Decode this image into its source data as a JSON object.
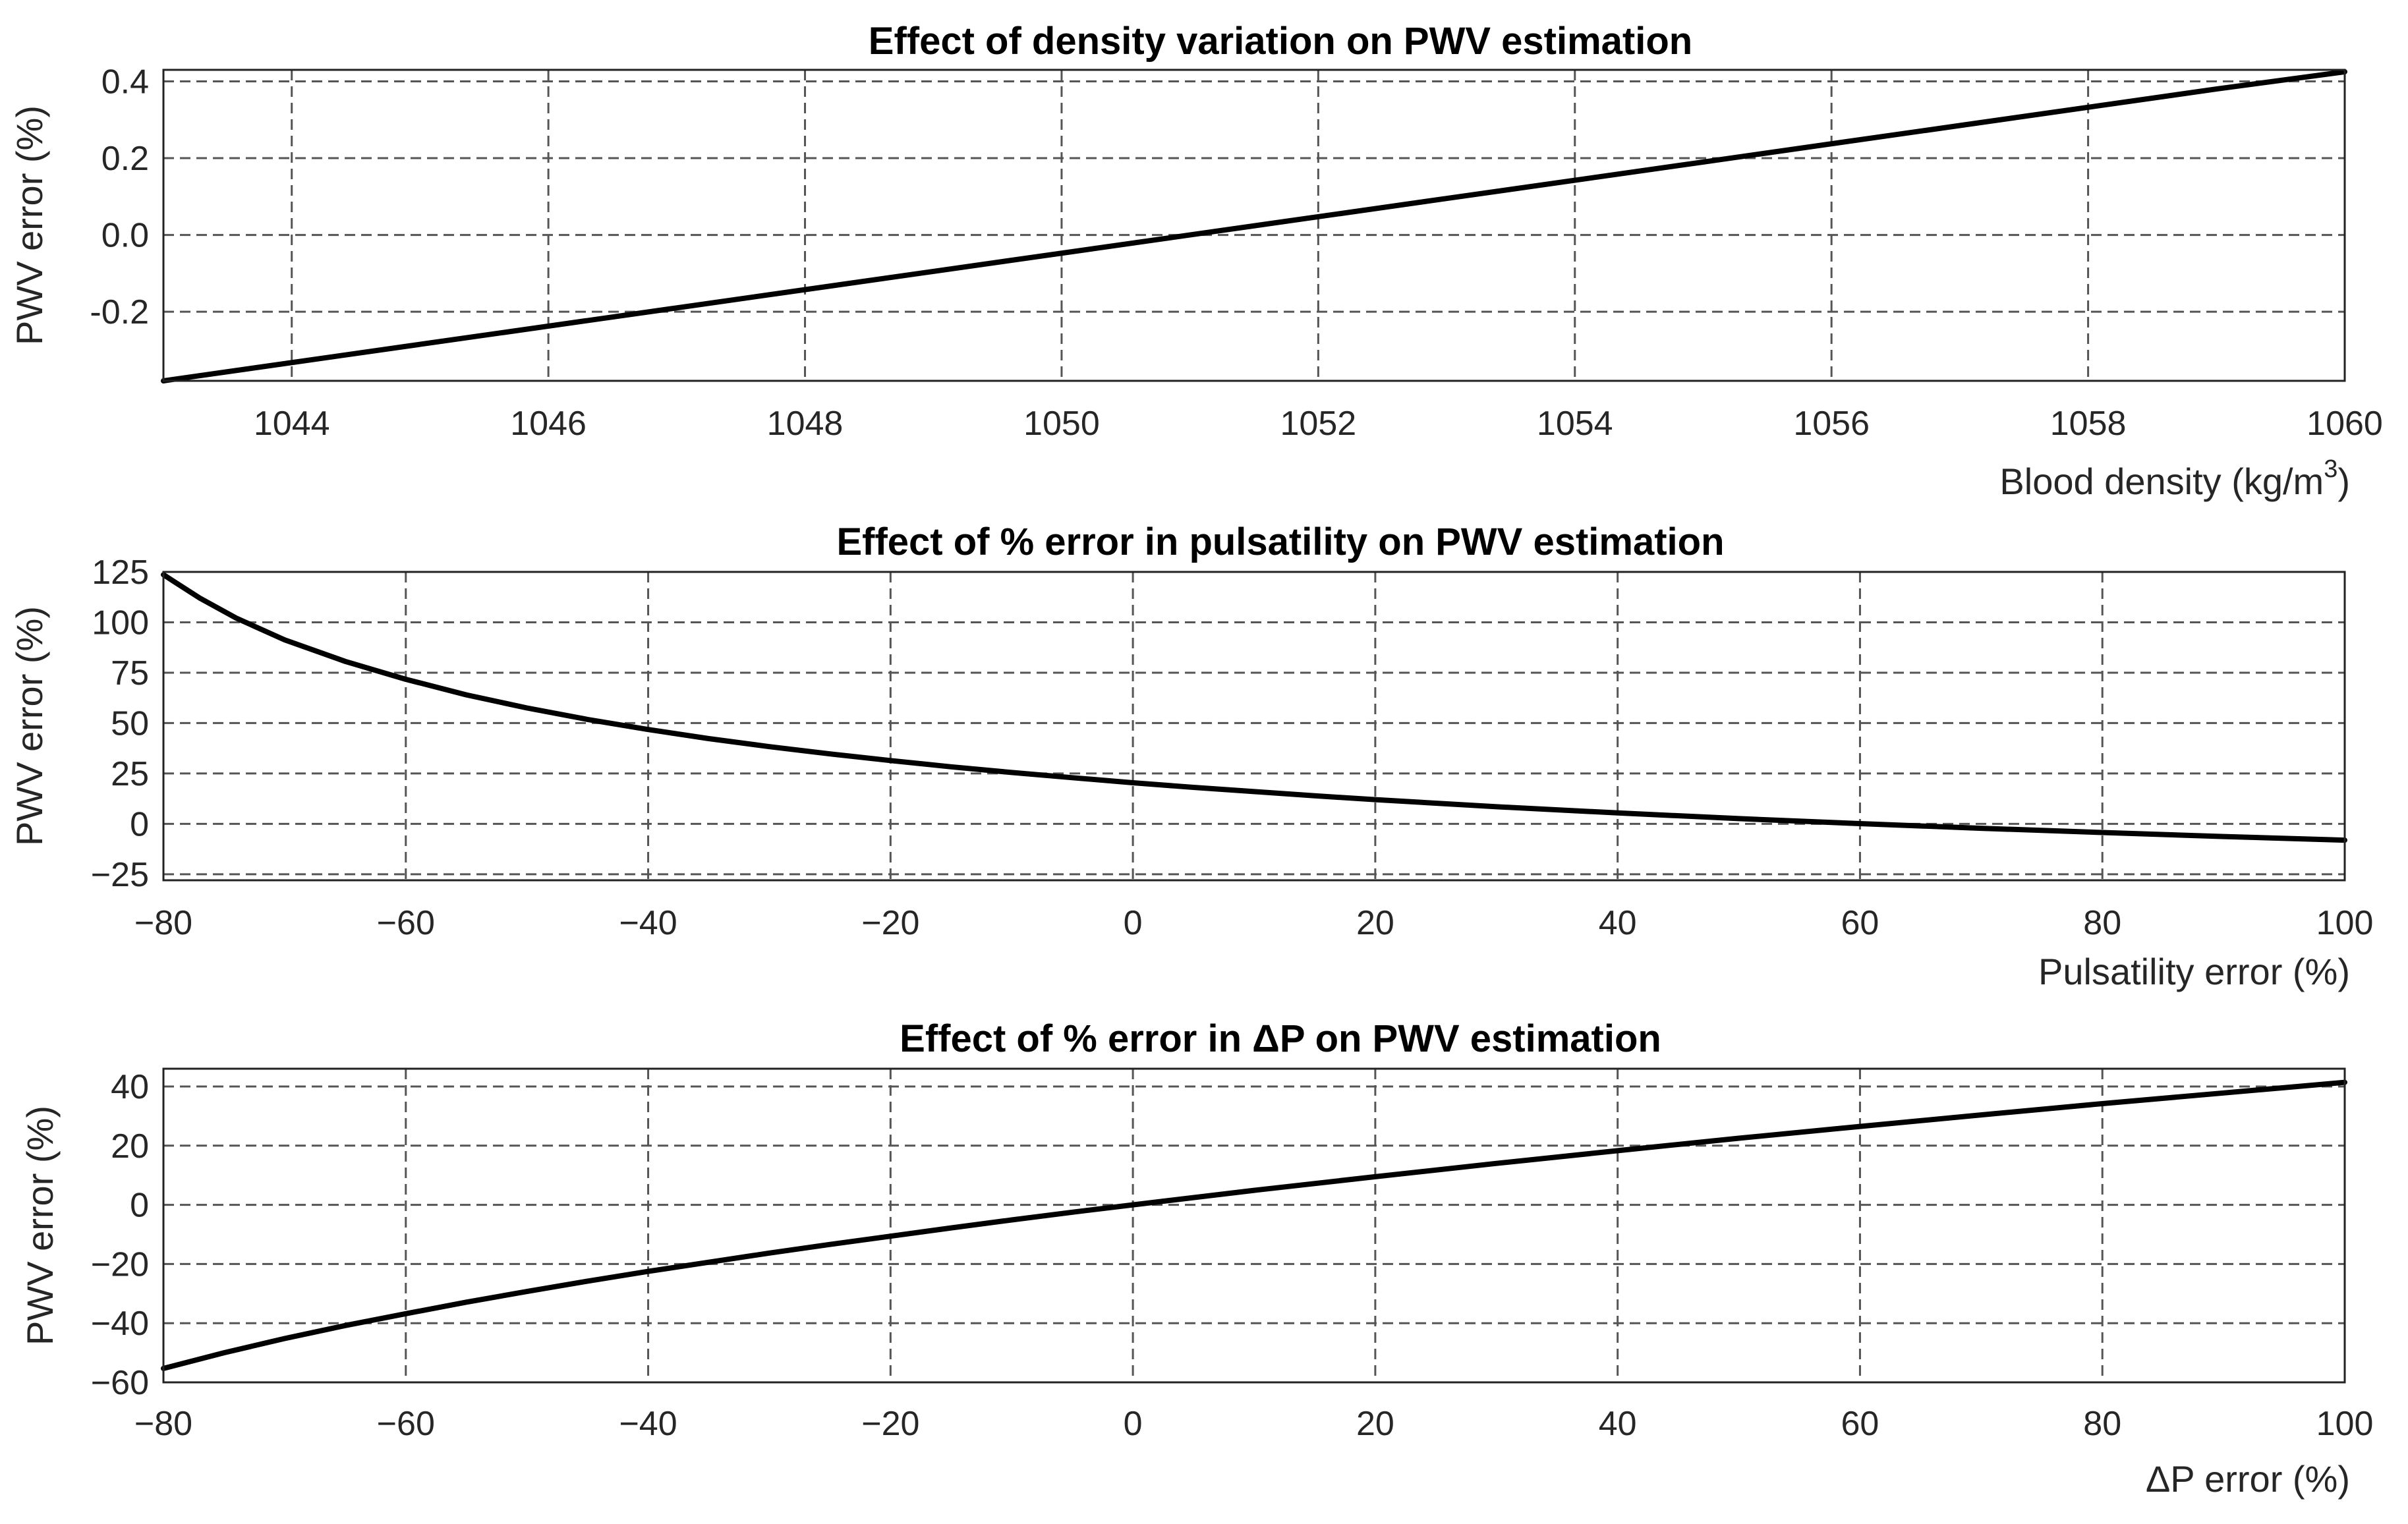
{
  "chart_data": [
    {
      "type": "line",
      "title": "Effect of density variation on PWV estimation",
      "xlabel": "Blood density (kg/m",
      "xlabel_superscript": "3",
      "xlabel_close": ")",
      "ylabel": "PWV error (%)",
      "xlim": [
        1043,
        1060
      ],
      "ylim": [
        -0.38,
        0.43
      ],
      "xticks": [
        1044,
        1046,
        1048,
        1050,
        1052,
        1054,
        1056,
        1058,
        1060
      ],
      "xtick_labels": [
        "1044",
        "1046",
        "1048",
        "1050",
        "1052",
        "1054",
        "1056",
        "1058",
        "1060"
      ],
      "yticks": [
        -0.2,
        0.0,
        0.2,
        0.4
      ],
      "ytick_labels": [
        "-0.2",
        "0.0",
        "0.2",
        "0.4"
      ],
      "grid": true,
      "series": [
        {
          "name": "PWV error",
          "x": [
            1043,
            1045,
            1047,
            1049,
            1051,
            1053,
            1055,
            1057,
            1059,
            1060
          ],
          "y": [
            -0.38,
            -0.285,
            -0.19,
            -0.095,
            0.0,
            0.095,
            0.19,
            0.285,
            0.38,
            0.425
          ]
        }
      ]
    },
    {
      "type": "line",
      "title": "Effect of % error in pulsatility on PWV estimation",
      "xlabel": "Pulsatility error (%)",
      "ylabel": "PWV error (%)",
      "xlim": [
        -80,
        100
      ],
      "ylim": [
        -28,
        125
      ],
      "xticks": [
        -80,
        -60,
        -40,
        -20,
        0,
        20,
        40,
        60,
        80,
        100
      ],
      "xtick_labels": [
        "−80",
        "−60",
        "−40",
        "−20",
        "0",
        "20",
        "40",
        "60",
        "80",
        "100"
      ],
      "yticks": [
        -25,
        0,
        25,
        50,
        75,
        100,
        125
      ],
      "ytick_labels": [
        "−25",
        "0",
        "25",
        "50",
        "75",
        "100",
        "125"
      ],
      "grid": true,
      "series": [
        {
          "name": "PWV error",
          "x": [
            -80,
            -77,
            -74,
            -70,
            -65,
            -60,
            -55,
            -50,
            -45,
            -40,
            -35,
            -30,
            -25,
            -20,
            -15,
            -10,
            -5,
            0,
            5,
            10,
            15,
            20,
            30,
            40,
            50,
            60,
            70,
            80,
            90,
            100
          ],
          "y": [
            123.6,
            112.0,
            102.1,
            91.3,
            80.6,
            71.7,
            64.0,
            57.5,
            51.8,
            46.8,
            42.3,
            38.3,
            34.7,
            31.4,
            28.3,
            25.5,
            22.9,
            20.4,
            18.1,
            16.0,
            13.9,
            12.0,
            8.5,
            5.4,
            2.6,
            0.1,
            -2.2,
            -4.3,
            -6.3,
            -8.1
          ]
        }
      ]
    },
    {
      "type": "line",
      "title": "Effect of % error in ΔP on PWV estimation",
      "xlabel": "ΔP error (%)",
      "ylabel": "PWV error (%)",
      "xlim": [
        -80,
        100
      ],
      "ylim": [
        -60,
        46
      ],
      "xticks": [
        -80,
        -60,
        -40,
        -20,
        0,
        20,
        40,
        60,
        80,
        100
      ],
      "xtick_labels": [
        "−80",
        "−60",
        "−40",
        "−20",
        "0",
        "20",
        "40",
        "60",
        "80",
        "100"
      ],
      "yticks": [
        -60,
        -40,
        -20,
        0,
        20,
        40
      ],
      "ytick_labels": [
        "−60",
        "−40",
        "−20",
        "0",
        "20",
        "40"
      ],
      "grid": true,
      "series": [
        {
          "name": "PWV error",
          "x": [
            -80,
            -75,
            -70,
            -65,
            -60,
            -55,
            -50,
            -45,
            -40,
            -35,
            -30,
            -25,
            -20,
            -15,
            -10,
            -5,
            0,
            10,
            20,
            30,
            40,
            50,
            60,
            70,
            80,
            90,
            100
          ],
          "y": [
            -55.3,
            -50.0,
            -45.2,
            -40.8,
            -36.8,
            -32.9,
            -29.3,
            -25.8,
            -22.5,
            -19.4,
            -16.3,
            -13.4,
            -10.6,
            -7.8,
            -5.1,
            -2.5,
            0.0,
            4.9,
            9.5,
            14.0,
            18.3,
            22.5,
            26.5,
            30.4,
            34.2,
            37.8,
            41.4
          ]
        }
      ]
    }
  ]
}
